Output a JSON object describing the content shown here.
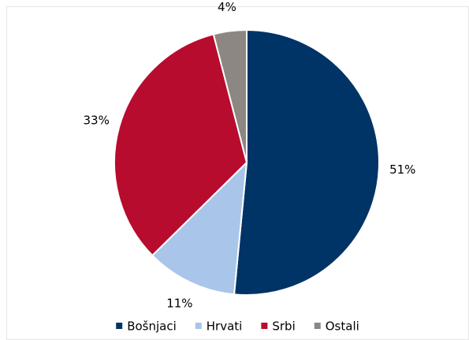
{
  "chart_data": {
    "type": "pie",
    "categories": [
      "Bošnjaci",
      "Hrvati",
      "Srbi",
      "Ostali"
    ],
    "values": [
      51,
      11,
      33,
      4
    ],
    "value_labels": [
      "51%",
      "11%",
      "33%",
      "4%"
    ],
    "colors": [
      "#003366",
      "#a9c5ea",
      "#b70c2d",
      "#8c8782"
    ],
    "legend": "bottom"
  }
}
